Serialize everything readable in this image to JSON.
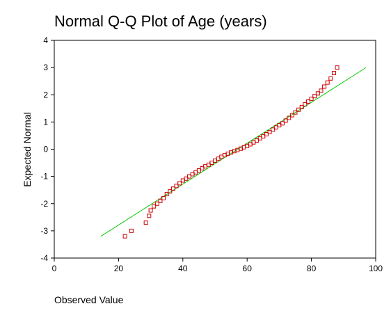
{
  "chart_data": {
    "type": "scatter",
    "title": "Normal Q-Q Plot of Age (years)",
    "xlabel": "Observed Value",
    "ylabel": "Expected Normal",
    "xlim": [
      0,
      100
    ],
    "ylim": [
      -4,
      4
    ],
    "x_ticks": [
      "0",
      "20",
      "40",
      "60",
      "80",
      "100"
    ],
    "y_ticks": [
      "4",
      "3",
      "2",
      "1",
      "0",
      "-1",
      "-2",
      "-3",
      "-4"
    ],
    "grid": false,
    "legend": "none",
    "marker": "square",
    "marker_color": "#cc0000",
    "line_color": "#00cc00",
    "reference_line": {
      "x": [
        14.5,
        97
      ],
      "y": [
        -3.2,
        3.0
      ]
    },
    "series": [
      {
        "x": [
          22,
          24,
          28.5,
          29.5,
          30,
          31,
          32,
          33,
          34,
          35,
          36,
          37,
          38,
          39,
          40,
          41,
          42,
          43,
          44,
          45,
          46,
          47,
          48,
          49,
          50,
          51,
          52,
          53,
          54,
          55,
          56,
          57,
          58,
          59,
          60,
          61,
          62,
          63,
          64,
          65,
          66,
          67,
          68,
          69,
          70,
          71,
          72,
          73,
          74,
          75,
          76,
          77,
          78,
          79,
          80,
          81,
          82,
          83,
          84,
          85,
          86,
          87,
          88
        ],
        "y": [
          -3.2,
          -3.0,
          -2.7,
          -2.45,
          -2.25,
          -2.1,
          -2.0,
          -1.9,
          -1.8,
          -1.65,
          -1.55,
          -1.45,
          -1.35,
          -1.25,
          -1.15,
          -1.08,
          -1.0,
          -0.92,
          -0.85,
          -0.78,
          -0.7,
          -0.63,
          -0.57,
          -0.5,
          -0.42,
          -0.35,
          -0.28,
          -0.22,
          -0.17,
          -0.12,
          -0.07,
          -0.03,
          0.02,
          0.07,
          0.12,
          0.18,
          0.25,
          0.32,
          0.4,
          0.47,
          0.55,
          0.63,
          0.72,
          0.8,
          0.88,
          0.95,
          1.05,
          1.15,
          1.25,
          1.35,
          1.45,
          1.55,
          1.65,
          1.75,
          1.85,
          1.95,
          2.05,
          2.15,
          2.3,
          2.45,
          2.6,
          2.8,
          3.0
        ]
      }
    ]
  }
}
